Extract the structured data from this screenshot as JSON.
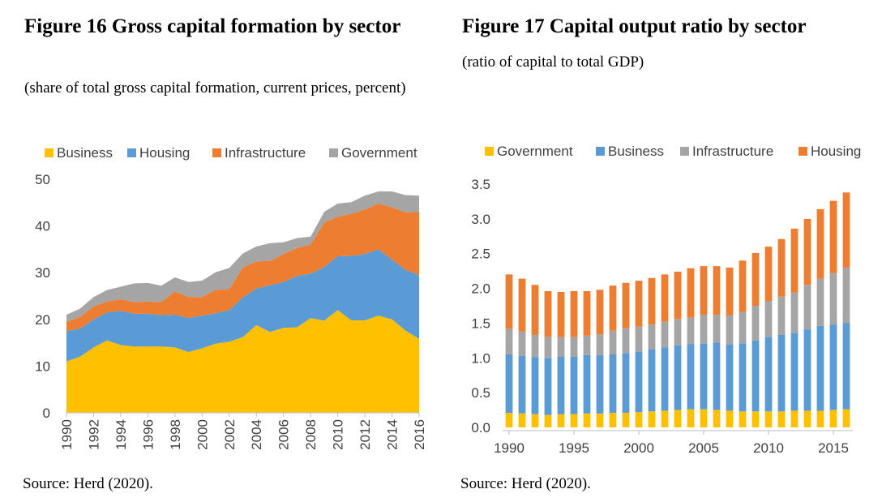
{
  "figures": [
    {
      "title": "Figure 16 Gross capital formation by sector",
      "subtitle": "(share of total gross capital formation, current prices, percent)",
      "source": "Source: Herd (2020)."
    },
    {
      "title": "Figure 17 Capital output ratio by sector",
      "subtitle": "(ratio of capital to total GDP)",
      "source": "Source: Herd (2020)."
    }
  ],
  "chart_data": [
    {
      "type": "area",
      "stacked": true,
      "legend_position": "top",
      "grid": false,
      "x": [
        1990,
        1991,
        1992,
        1993,
        1994,
        1995,
        1996,
        1997,
        1998,
        1999,
        2000,
        2001,
        2002,
        2003,
        2004,
        2005,
        2006,
        2007,
        2008,
        2009,
        2010,
        2011,
        2012,
        2013,
        2014,
        2015,
        2016
      ],
      "x_tick_labels": [
        "1990",
        "1992",
        "1994",
        "1996",
        "1998",
        "2000",
        "2002",
        "2004",
        "2006",
        "2008",
        "2010",
        "2012",
        "2014",
        "2016"
      ],
      "ylim": [
        0,
        50
      ],
      "y_ticks": [
        0,
        10,
        20,
        30,
        40,
        50
      ],
      "series": [
        {
          "name": "Business",
          "color": "#FFC000",
          "values": [
            11,
            12,
            14,
            15.5,
            14.5,
            14.2,
            14.2,
            14.2,
            14,
            13,
            13.8,
            14.8,
            15.2,
            16.2,
            18.8,
            17.3,
            18.2,
            18.3,
            20.3,
            19.7,
            22,
            19.8,
            19.8,
            20.8,
            20,
            17.6,
            15.8
          ]
        },
        {
          "name": "Housing",
          "color": "#5B9BD5",
          "values": [
            6.5,
            6,
            6,
            6,
            7.3,
            7,
            7,
            6.7,
            7,
            7.3,
            7,
            6.5,
            6.8,
            8.5,
            7.8,
            10,
            9.8,
            11,
            9.5,
            11.5,
            11.5,
            13.8,
            14.2,
            14.2,
            12.8,
            13,
            13.7
          ]
        },
        {
          "name": "Infrastructure",
          "color": "#ED7D31",
          "values": [
            2,
            2.5,
            2.8,
            2.3,
            2.5,
            2.5,
            2.6,
            2.8,
            5,
            4.5,
            4,
            5,
            4.5,
            6.4,
            5.8,
            5.2,
            6,
            6,
            6.2,
            9.5,
            8.5,
            9,
            9.5,
            9.8,
            11.2,
            12.3,
            13.5
          ]
        },
        {
          "name": "Government",
          "color": "#A5A5A5",
          "values": [
            1.5,
            1.8,
            2,
            2.5,
            2.7,
            4,
            4,
            3.5,
            3,
            3.2,
            3.5,
            3.8,
            4.5,
            3,
            3.2,
            3.8,
            2.5,
            2.1,
            1.7,
            2.3,
            2.8,
            2.5,
            3,
            2.6,
            3.4,
            3.7,
            3.5
          ]
        }
      ]
    },
    {
      "type": "bar",
      "stacked": true,
      "legend_position": "top",
      "grid": false,
      "x": [
        1990,
        1991,
        1992,
        1993,
        1994,
        1995,
        1996,
        1997,
        1998,
        1999,
        2000,
        2001,
        2002,
        2003,
        2004,
        2005,
        2006,
        2007,
        2008,
        2009,
        2010,
        2011,
        2012,
        2013,
        2014,
        2015,
        2016
      ],
      "x_tick_labels": [
        "1990",
        "1995",
        "2000",
        "2005",
        "2010",
        "2015"
      ],
      "ylim": [
        0,
        3.5
      ],
      "y_ticks": [
        "0.0",
        "0.5",
        "1.0",
        "1.5",
        "2.0",
        "2.5",
        "3.0",
        "3.5"
      ],
      "series": [
        {
          "name": "Government",
          "color": "#FFC000",
          "values": [
            0.21,
            0.2,
            0.19,
            0.18,
            0.19,
            0.19,
            0.2,
            0.2,
            0.21,
            0.21,
            0.22,
            0.23,
            0.24,
            0.25,
            0.26,
            0.26,
            0.25,
            0.24,
            0.23,
            0.23,
            0.23,
            0.23,
            0.24,
            0.24,
            0.24,
            0.25,
            0.26
          ]
        },
        {
          "name": "Business",
          "color": "#5B9BD5",
          "values": [
            0.84,
            0.83,
            0.82,
            0.82,
            0.83,
            0.83,
            0.84,
            0.84,
            0.84,
            0.86,
            0.87,
            0.89,
            0.91,
            0.93,
            0.94,
            0.95,
            0.97,
            0.95,
            0.98,
            1.02,
            1.07,
            1.1,
            1.12,
            1.17,
            1.22,
            1.23,
            1.24
          ]
        },
        {
          "name": "Infrastructure",
          "color": "#A5A5A5",
          "values": [
            0.37,
            0.35,
            0.32,
            0.3,
            0.28,
            0.28,
            0.28,
            0.3,
            0.34,
            0.36,
            0.36,
            0.36,
            0.37,
            0.38,
            0.38,
            0.41,
            0.4,
            0.42,
            0.45,
            0.5,
            0.52,
            0.55,
            0.58,
            0.64,
            0.68,
            0.74,
            0.8
          ]
        },
        {
          "name": "Housing",
          "color": "#ED7D31",
          "values": [
            0.78,
            0.76,
            0.72,
            0.66,
            0.65,
            0.66,
            0.64,
            0.64,
            0.65,
            0.65,
            0.66,
            0.67,
            0.68,
            0.68,
            0.71,
            0.7,
            0.7,
            0.69,
            0.74,
            0.76,
            0.78,
            0.83,
            0.92,
            0.95,
            1,
            1.04,
            1.08
          ]
        }
      ]
    }
  ]
}
